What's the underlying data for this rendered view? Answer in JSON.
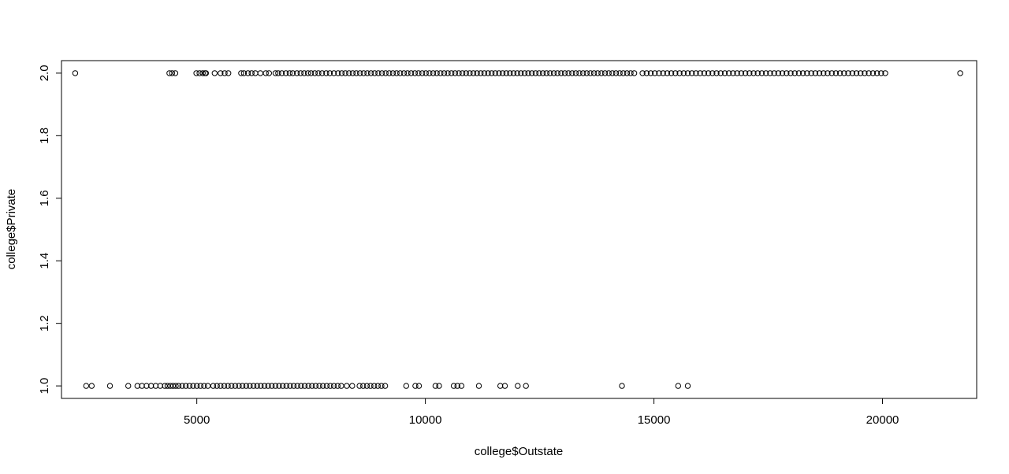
{
  "chart_data": {
    "type": "scatter",
    "title": "",
    "xlabel": "college$Outstate",
    "ylabel": "college$Private",
    "xlim": [
      2040,
      22060
    ],
    "ylim": [
      0.96,
      2.04
    ],
    "x_ticks": [
      5000,
      10000,
      15000,
      20000
    ],
    "x_tick_labels": [
      "5000",
      "10000",
      "15000",
      "20000"
    ],
    "y_ticks": [
      1.0,
      1.2,
      1.4,
      1.6,
      1.8,
      2.0
    ],
    "y_tick_labels": [
      "1.0",
      "1.2",
      "1.4",
      "1.6",
      "1.8",
      "2.0"
    ],
    "grid": false,
    "marker": "open-circle",
    "marker_color": "#000000",
    "series": [
      {
        "points": [
          [
            2340,
            2
          ],
          [
            4400,
            2
          ],
          [
            4460,
            2
          ],
          [
            4530,
            2
          ],
          [
            4990,
            2
          ],
          [
            5060,
            2
          ],
          [
            5130,
            2
          ],
          [
            5180,
            2
          ],
          [
            5200,
            2
          ],
          [
            5390,
            2
          ],
          [
            5520,
            2
          ],
          [
            5610,
            2
          ],
          [
            5690,
            2
          ],
          [
            5970,
            2
          ],
          [
            6030,
            2
          ],
          [
            6120,
            2
          ],
          [
            6200,
            2
          ],
          [
            6280,
            2
          ],
          [
            6390,
            2
          ],
          [
            6510,
            2
          ],
          [
            6580,
            2
          ],
          [
            6720,
            2
          ],
          [
            6780,
            2
          ],
          [
            6860,
            2
          ],
          [
            6950,
            2
          ],
          [
            7030,
            2
          ],
          [
            7100,
            2
          ],
          [
            7190,
            2
          ],
          [
            7270,
            2
          ],
          [
            7350,
            2
          ],
          [
            7430,
            2
          ],
          [
            7500,
            2
          ],
          [
            7580,
            2
          ],
          [
            7660,
            2
          ],
          [
            7740,
            2
          ],
          [
            7830,
            2
          ],
          [
            7910,
            2
          ],
          [
            8000,
            2
          ],
          [
            8090,
            2
          ],
          [
            8170,
            2
          ],
          [
            8250,
            2
          ],
          [
            8330,
            2
          ],
          [
            8410,
            2
          ],
          [
            8490,
            2
          ],
          [
            8570,
            2
          ],
          [
            8650,
            2
          ],
          [
            8730,
            2
          ],
          [
            8810,
            2
          ],
          [
            8890,
            2
          ],
          [
            8970,
            2
          ],
          [
            9050,
            2
          ],
          [
            9130,
            2
          ],
          [
            9210,
            2
          ],
          [
            9290,
            2
          ],
          [
            9370,
            2
          ],
          [
            9450,
            2
          ],
          [
            9530,
            2
          ],
          [
            9610,
            2
          ],
          [
            9690,
            2
          ],
          [
            9770,
            2
          ],
          [
            9850,
            2
          ],
          [
            9930,
            2
          ],
          [
            10010,
            2
          ],
          [
            10090,
            2
          ],
          [
            10170,
            2
          ],
          [
            10250,
            2
          ],
          [
            10330,
            2
          ],
          [
            10410,
            2
          ],
          [
            10490,
            2
          ],
          [
            10570,
            2
          ],
          [
            10650,
            2
          ],
          [
            10730,
            2
          ],
          [
            10810,
            2
          ],
          [
            10890,
            2
          ],
          [
            10970,
            2
          ],
          [
            11050,
            2
          ],
          [
            11130,
            2
          ],
          [
            11210,
            2
          ],
          [
            11290,
            2
          ],
          [
            11370,
            2
          ],
          [
            11450,
            2
          ],
          [
            11530,
            2
          ],
          [
            11610,
            2
          ],
          [
            11690,
            2
          ],
          [
            11770,
            2
          ],
          [
            11850,
            2
          ],
          [
            11930,
            2
          ],
          [
            12010,
            2
          ],
          [
            12090,
            2
          ],
          [
            12170,
            2
          ],
          [
            12250,
            2
          ],
          [
            12330,
            2
          ],
          [
            12410,
            2
          ],
          [
            12490,
            2
          ],
          [
            12570,
            2
          ],
          [
            12650,
            2
          ],
          [
            12730,
            2
          ],
          [
            12810,
            2
          ],
          [
            12890,
            2
          ],
          [
            12970,
            2
          ],
          [
            13050,
            2
          ],
          [
            13130,
            2
          ],
          [
            13210,
            2
          ],
          [
            13290,
            2
          ],
          [
            13370,
            2
          ],
          [
            13450,
            2
          ],
          [
            13530,
            2
          ],
          [
            13610,
            2
          ],
          [
            13690,
            2
          ],
          [
            13770,
            2
          ],
          [
            13850,
            2
          ],
          [
            13930,
            2
          ],
          [
            14010,
            2
          ],
          [
            14090,
            2
          ],
          [
            14170,
            2
          ],
          [
            14250,
            2
          ],
          [
            14330,
            2
          ],
          [
            14410,
            2
          ],
          [
            14490,
            2
          ],
          [
            14570,
            2
          ],
          [
            14750,
            2
          ],
          [
            14840,
            2
          ],
          [
            14930,
            2
          ],
          [
            15020,
            2
          ],
          [
            15110,
            2
          ],
          [
            15200,
            2
          ],
          [
            15290,
            2
          ],
          [
            15380,
            2
          ],
          [
            15470,
            2
          ],
          [
            15560,
            2
          ],
          [
            15650,
            2
          ],
          [
            15740,
            2
          ],
          [
            15830,
            2
          ],
          [
            15920,
            2
          ],
          [
            16010,
            2
          ],
          [
            16100,
            2
          ],
          [
            16190,
            2
          ],
          [
            16280,
            2
          ],
          [
            16370,
            2
          ],
          [
            16460,
            2
          ],
          [
            16550,
            2
          ],
          [
            16640,
            2
          ],
          [
            16730,
            2
          ],
          [
            16820,
            2
          ],
          [
            16910,
            2
          ],
          [
            17000,
            2
          ],
          [
            17090,
            2
          ],
          [
            17180,
            2
          ],
          [
            17270,
            2
          ],
          [
            17360,
            2
          ],
          [
            17450,
            2
          ],
          [
            17540,
            2
          ],
          [
            17630,
            2
          ],
          [
            17720,
            2
          ],
          [
            17810,
            2
          ],
          [
            17900,
            2
          ],
          [
            17990,
            2
          ],
          [
            18080,
            2
          ],
          [
            18170,
            2
          ],
          [
            18260,
            2
          ],
          [
            18350,
            2
          ],
          [
            18440,
            2
          ],
          [
            18530,
            2
          ],
          [
            18620,
            2
          ],
          [
            18710,
            2
          ],
          [
            18800,
            2
          ],
          [
            18890,
            2
          ],
          [
            18980,
            2
          ],
          [
            19070,
            2
          ],
          [
            19160,
            2
          ],
          [
            19250,
            2
          ],
          [
            19340,
            2
          ],
          [
            19430,
            2
          ],
          [
            19520,
            2
          ],
          [
            19610,
            2
          ],
          [
            19700,
            2
          ],
          [
            19790,
            2
          ],
          [
            19880,
            2
          ],
          [
            19970,
            2
          ],
          [
            20060,
            2
          ],
          [
            21700,
            2
          ],
          [
            2580,
            1
          ],
          [
            2700,
            1
          ],
          [
            3100,
            1
          ],
          [
            3500,
            1
          ],
          [
            3700,
            1
          ],
          [
            3800,
            1
          ],
          [
            3900,
            1
          ],
          [
            4000,
            1
          ],
          [
            4100,
            1
          ],
          [
            4200,
            1
          ],
          [
            4300,
            1
          ],
          [
            4360,
            1
          ],
          [
            4420,
            1
          ],
          [
            4480,
            1
          ],
          [
            4540,
            1
          ],
          [
            4600,
            1
          ],
          [
            4680,
            1
          ],
          [
            4760,
            1
          ],
          [
            4840,
            1
          ],
          [
            4920,
            1
          ],
          [
            5000,
            1
          ],
          [
            5080,
            1
          ],
          [
            5160,
            1
          ],
          [
            5240,
            1
          ],
          [
            5360,
            1
          ],
          [
            5440,
            1
          ],
          [
            5520,
            1
          ],
          [
            5600,
            1
          ],
          [
            5680,
            1
          ],
          [
            5760,
            1
          ],
          [
            5840,
            1
          ],
          [
            5920,
            1
          ],
          [
            6000,
            1
          ],
          [
            6080,
            1
          ],
          [
            6160,
            1
          ],
          [
            6240,
            1
          ],
          [
            6320,
            1
          ],
          [
            6400,
            1
          ],
          [
            6480,
            1
          ],
          [
            6560,
            1
          ],
          [
            6640,
            1
          ],
          [
            6720,
            1
          ],
          [
            6800,
            1
          ],
          [
            6880,
            1
          ],
          [
            6960,
            1
          ],
          [
            7040,
            1
          ],
          [
            7120,
            1
          ],
          [
            7200,
            1
          ],
          [
            7280,
            1
          ],
          [
            7360,
            1
          ],
          [
            7440,
            1
          ],
          [
            7520,
            1
          ],
          [
            7600,
            1
          ],
          [
            7680,
            1
          ],
          [
            7760,
            1
          ],
          [
            7840,
            1
          ],
          [
            7920,
            1
          ],
          [
            8000,
            1
          ],
          [
            8080,
            1
          ],
          [
            8160,
            1
          ],
          [
            8280,
            1
          ],
          [
            8400,
            1
          ],
          [
            8560,
            1
          ],
          [
            8640,
            1
          ],
          [
            8720,
            1
          ],
          [
            8800,
            1
          ],
          [
            8880,
            1
          ],
          [
            8960,
            1
          ],
          [
            9040,
            1
          ],
          [
            9120,
            1
          ],
          [
            9580,
            1
          ],
          [
            9780,
            1
          ],
          [
            9860,
            1
          ],
          [
            10220,
            1
          ],
          [
            10300,
            1
          ],
          [
            10620,
            1
          ],
          [
            10700,
            1
          ],
          [
            10790,
            1
          ],
          [
            11170,
            1
          ],
          [
            11640,
            1
          ],
          [
            11740,
            1
          ],
          [
            12020,
            1
          ],
          [
            12200,
            1
          ],
          [
            14300,
            1
          ],
          [
            15530,
            1
          ],
          [
            15740,
            1
          ]
        ]
      }
    ]
  }
}
